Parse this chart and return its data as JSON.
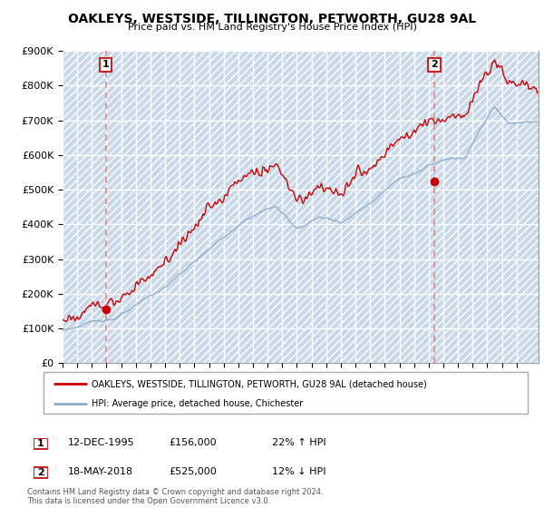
{
  "title": "OAKLEYS, WESTSIDE, TILLINGTON, PETWORTH, GU28 9AL",
  "subtitle": "Price paid vs. HM Land Registry's House Price Index (HPI)",
  "ylim": [
    0,
    900000
  ],
  "yticks": [
    0,
    100000,
    200000,
    300000,
    400000,
    500000,
    600000,
    700000,
    800000,
    900000
  ],
  "ytick_labels": [
    "£0",
    "£100K",
    "£200K",
    "£300K",
    "£400K",
    "£500K",
    "£600K",
    "£700K",
    "£800K",
    "£900K"
  ],
  "xmin": 1993.0,
  "xmax": 2025.5,
  "legend_line1": "OAKLEYS, WESTSIDE, TILLINGTON, PETWORTH, GU28 9AL (detached house)",
  "legend_line2": "HPI: Average price, detached house, Chichester",
  "point1_label": "1",
  "point1_date": "12-DEC-1995",
  "point1_price": "£156,000",
  "point1_hpi": "22% ↑ HPI",
  "point1_x": 1995.95,
  "point1_y": 156000,
  "point2_label": "2",
  "point2_date": "18-MAY-2018",
  "point2_price": "£525,000",
  "point2_hpi": "12% ↓ HPI",
  "point2_x": 2018.38,
  "point2_y": 525000,
  "sale_color": "#cc0000",
  "hpi_color": "#88aacc",
  "marker_vline_color": "#dd8888",
  "bg_color": "#ddeeff",
  "hatch_color": "#c8d8e8",
  "footer": "Contains HM Land Registry data © Crown copyright and database right 2024.\nThis data is licensed under the Open Government Licence v3.0."
}
